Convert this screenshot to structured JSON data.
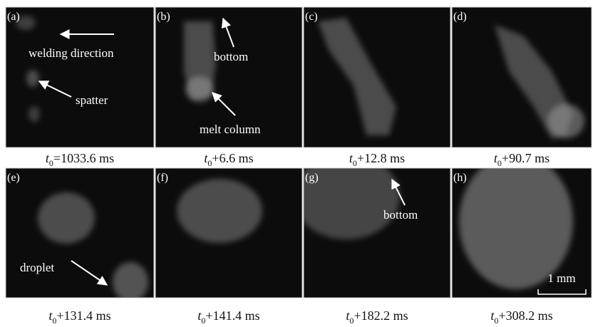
{
  "panels": [
    {
      "label": "(a)",
      "caption": {
        "var": "t",
        "sub": "0",
        "text": "=1033.6 ms"
      }
    },
    {
      "label": "(b)",
      "caption": {
        "var": "t",
        "sub": "0",
        "text": "+6.6 ms"
      }
    },
    {
      "label": "(c)",
      "caption": {
        "var": "t",
        "sub": "0",
        "text": "+12.8 ms"
      }
    },
    {
      "label": "(d)",
      "caption": {
        "var": "t",
        "sub": "0",
        "text": "+90.7 ms"
      }
    },
    {
      "label": "(e)",
      "caption": {
        "var": "t",
        "sub": "0",
        "text": "+131.4 ms"
      }
    },
    {
      "label": "(f)",
      "caption": {
        "var": "t",
        "sub": "0",
        "text": "+141.4 ms"
      }
    },
    {
      "label": "(g)",
      "caption": {
        "var": "t",
        "sub": "0",
        "text": "+182.2 ms"
      }
    },
    {
      "label": "(h)",
      "caption": {
        "var": "t",
        "sub": "0",
        "text": "+308.2 ms"
      }
    }
  ],
  "annotations": {
    "welding_direction": "welding direction",
    "spatter": "spatter",
    "bottom_b": "bottom",
    "melt_column": "melt column",
    "droplet": "droplet",
    "bottom_g": "bottom",
    "scale_bar": "1 mm"
  }
}
